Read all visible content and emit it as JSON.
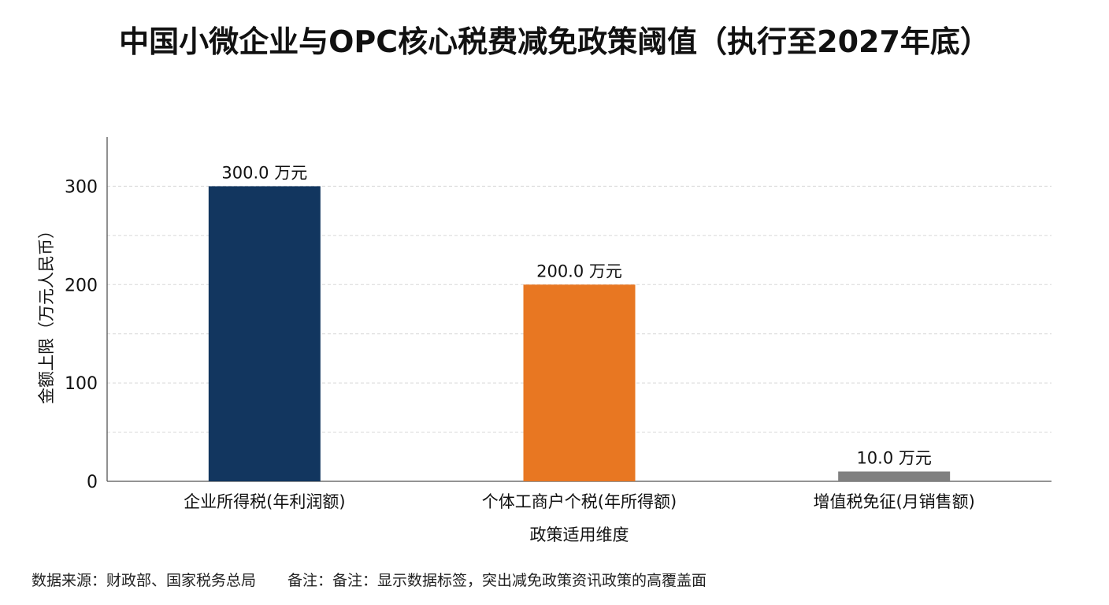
{
  "title": "中国小微企业与OPC核心税费减免政策阈值（执行至2027年底）",
  "chart_data": {
    "type": "bar",
    "title": "中国小微企业与OPC核心税费减免政策阈值（执行至2027年底）",
    "categories": [
      "企业所得税(年利润额)",
      "个体工商户个税(年所得额)",
      "增值税免征(月销售额)"
    ],
    "values": [
      300.0,
      200.0,
      10.0
    ],
    "data_labels": [
      "300.0 万元",
      "200.0 万元",
      "10.0 万元"
    ],
    "colors": [
      "#12365f",
      "#e87722",
      "#808080"
    ],
    "xlabel": "政策适用维度",
    "ylabel": "金额上限（万元人民币）",
    "ylim": [
      0,
      350
    ],
    "yticks": [
      0,
      100,
      200,
      300
    ],
    "grid": true,
    "grid_style": "dashed horizontal every 50",
    "legend": "none"
  },
  "footer": {
    "source": "数据来源：财政部、国家税务总局",
    "note": "备注：备注：显示数据标签，突出减免政策资讯政策的高覆盖面"
  }
}
